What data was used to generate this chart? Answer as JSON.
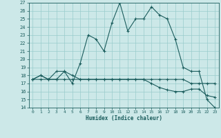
{
  "xlabel": "Humidex (Indice chaleur)",
  "xlim": [
    -0.5,
    23.5
  ],
  "ylim": [
    14,
    27
  ],
  "xticks": [
    0,
    1,
    2,
    3,
    4,
    5,
    6,
    7,
    8,
    9,
    10,
    11,
    12,
    13,
    14,
    15,
    16,
    17,
    18,
    19,
    20,
    21,
    22,
    23
  ],
  "yticks": [
    14,
    15,
    16,
    17,
    18,
    19,
    20,
    21,
    22,
    23,
    24,
    25,
    26,
    27
  ],
  "bg_color": "#cce8e8",
  "grid_color": "#99cccc",
  "line_color": "#1a5c5c",
  "line1": [
    17.5,
    18.0,
    17.5,
    17.5,
    18.5,
    18.0,
    17.5,
    17.5,
    17.5,
    17.5,
    17.5,
    17.5,
    17.5,
    17.5,
    17.5,
    17.5,
    17.5,
    17.5,
    17.5,
    17.5,
    17.0,
    17.0,
    17.0,
    17.0
  ],
  "line2": [
    17.5,
    17.5,
    17.5,
    17.5,
    17.5,
    17.5,
    17.5,
    17.5,
    17.5,
    17.5,
    17.5,
    17.5,
    17.5,
    17.5,
    17.5,
    17.0,
    16.5,
    16.2,
    16.0,
    16.0,
    16.3,
    16.3,
    15.5,
    15.3
  ],
  "line3": [
    17.5,
    18.0,
    17.5,
    18.5,
    18.5,
    17.0,
    19.5,
    23.0,
    22.5,
    21.0,
    24.5,
    27.0,
    23.5,
    25.0,
    25.0,
    26.5,
    25.5,
    25.0,
    22.5,
    19.0,
    18.5,
    18.5,
    15.0,
    14.0
  ]
}
